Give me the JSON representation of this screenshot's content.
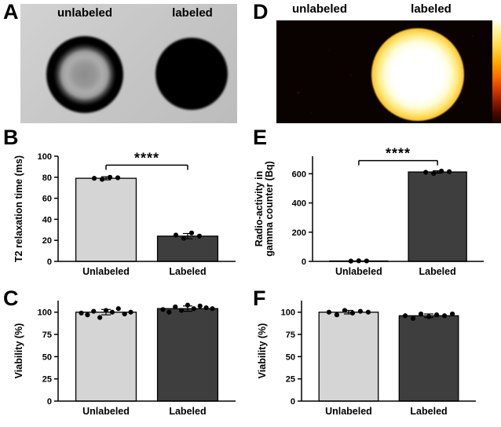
{
  "panels": {
    "A": {
      "letter": "A",
      "left_label": "unlabeled",
      "right_label": "labeled"
    },
    "B": {
      "letter": "B"
    },
    "C": {
      "letter": "C"
    },
    "D": {
      "letter": "D",
      "left_label": "unlabeled",
      "right_label": "labeled"
    },
    "E": {
      "letter": "E"
    },
    "F": {
      "letter": "F"
    }
  },
  "colors": {
    "bar_light": "#d5d5d5",
    "bar_dark": "#3e3e3e",
    "point": "#000000",
    "hot_core": "#ffffff",
    "hot_rim": "#ff8400"
  },
  "chart_data": [
    {
      "panel": "B",
      "type": "bar",
      "title": "",
      "xlabel": "",
      "ylabel": "T2 relaxation time (ms)",
      "categories": [
        "Unlabeled",
        "Labeled"
      ],
      "values": [
        79,
        24
      ],
      "errors": [
        1.5,
        2.5
      ],
      "points": [
        [
          79,
          78,
          80,
          79.5
        ],
        [
          25,
          22,
          27,
          24
        ]
      ],
      "ylim": [
        0,
        100
      ],
      "yticks": [
        0,
        20,
        40,
        60,
        80,
        100
      ],
      "significance": "****",
      "sig_y": 91.5,
      "bar_colors": [
        "#d5d5d5",
        "#3e3e3e"
      ]
    },
    {
      "panel": "E",
      "type": "bar",
      "title": "",
      "xlabel": "",
      "ylabel": "Radio-activity in\ngamma counter (Bq)",
      "categories": [
        "Unlabeled",
        "Labeled"
      ],
      "values": [
        3,
        612
      ],
      "errors": [
        0,
        8
      ],
      "points": [
        [
          2,
          4,
          3
        ],
        [
          610,
          602,
          618,
          614
        ]
      ],
      "ylim": [
        0,
        720
      ],
      "yticks": [
        0,
        200,
        400,
        600
      ],
      "significance": "****",
      "sig_y": 690,
      "bar_colors": [
        "#d5d5d5",
        "#3e3e3e"
      ]
    },
    {
      "panel": "C",
      "type": "bar",
      "title": "",
      "xlabel": "",
      "ylabel": "Viability (%)",
      "categories": [
        "Unlabeled",
        "Labeled"
      ],
      "values": [
        100,
        104
      ],
      "errors": [
        3,
        3
      ],
      "points": [
        [
          99,
          97,
          101,
          94,
          102,
          100,
          104,
          98,
          100
        ],
        [
          103,
          100,
          106,
          102,
          108,
          104,
          107,
          105,
          104
        ]
      ],
      "ylim": [
        0,
        113
      ],
      "yticks": [
        0,
        25,
        50,
        75,
        100
      ],
      "significance": null,
      "sig_y": null,
      "bar_colors": [
        "#d5d5d5",
        "#3e3e3e"
      ]
    },
    {
      "panel": "F",
      "type": "bar",
      "title": "",
      "xlabel": "",
      "ylabel": "Viability (%)",
      "categories": [
        "Unlabeled",
        "Labeled"
      ],
      "values": [
        100,
        96
      ],
      "errors": [
        2,
        2
      ],
      "points": [
        [
          100,
          97,
          102,
          99,
          101,
          100
        ],
        [
          96,
          93,
          98,
          95,
          97,
          96,
          98
        ]
      ],
      "ylim": [
        0,
        113
      ],
      "yticks": [
        0,
        25,
        50,
        75,
        100
      ],
      "significance": null,
      "sig_y": null,
      "bar_colors": [
        "#d5d5d5",
        "#3e3e3e"
      ]
    }
  ]
}
